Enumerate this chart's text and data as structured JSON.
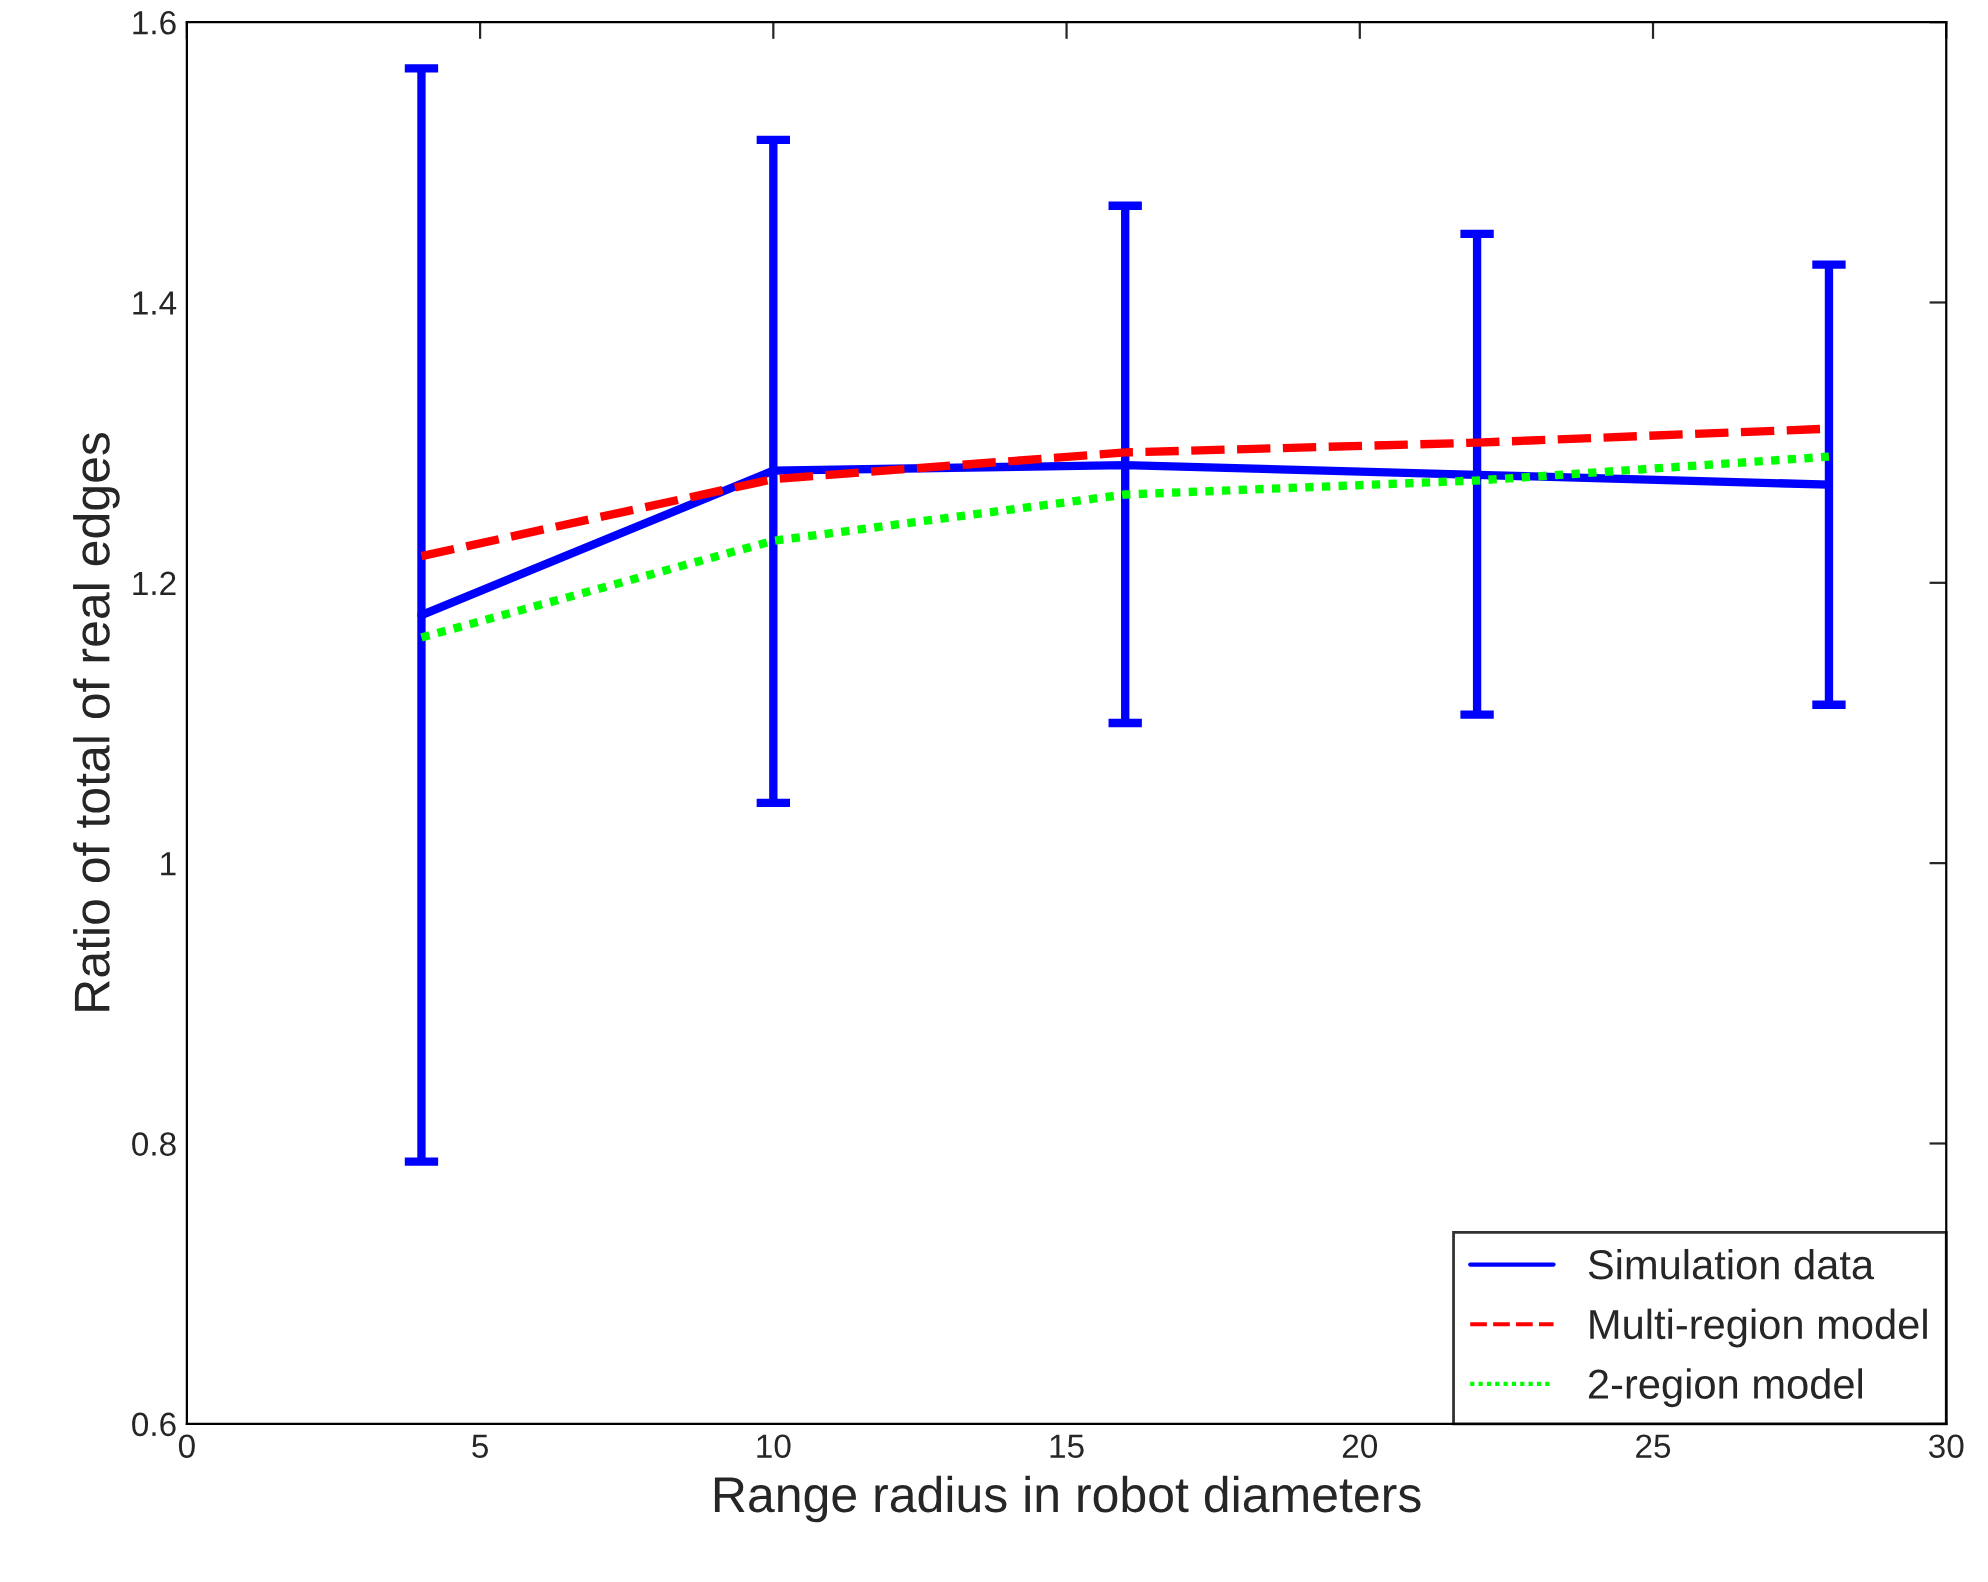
{
  "chart_data": {
    "type": "line",
    "xlabel": "Range radius in robot diameters",
    "ylabel": "Ratio of total of real edges",
    "x": [
      4,
      10,
      16,
      22,
      28
    ],
    "series": [
      {
        "name": "Simulation data",
        "color": "#0000ff",
        "line_style": "solid",
        "values": [
          1.177,
          1.28,
          1.284,
          1.277,
          1.27
        ],
        "errors": [
          [
            0.787,
            1.567
          ],
          [
            1.043,
            1.516
          ],
          [
            1.1,
            1.469
          ],
          [
            1.106,
            1.449
          ],
          [
            1.113,
            1.427
          ]
        ]
      },
      {
        "name": "Multi-region model",
        "color": "#ff0000",
        "line_style": "dashed",
        "values": [
          1.219,
          1.274,
          1.293,
          1.3,
          1.31
        ]
      },
      {
        "name": "2-region model",
        "color": "#00ff00",
        "line_style": "dotted",
        "values": [
          1.161,
          1.23,
          1.263,
          1.273,
          1.29
        ]
      }
    ],
    "xlim": [
      0,
      30
    ],
    "xticks": [
      0,
      5,
      10,
      15,
      20,
      25,
      30
    ],
    "ylim": [
      0.6,
      1.6
    ],
    "yticks": [
      0.6,
      0.8,
      1,
      1.2,
      1.4,
      1.6
    ],
    "grid": false,
    "legend": "bottom right",
    "marker": "none"
  }
}
